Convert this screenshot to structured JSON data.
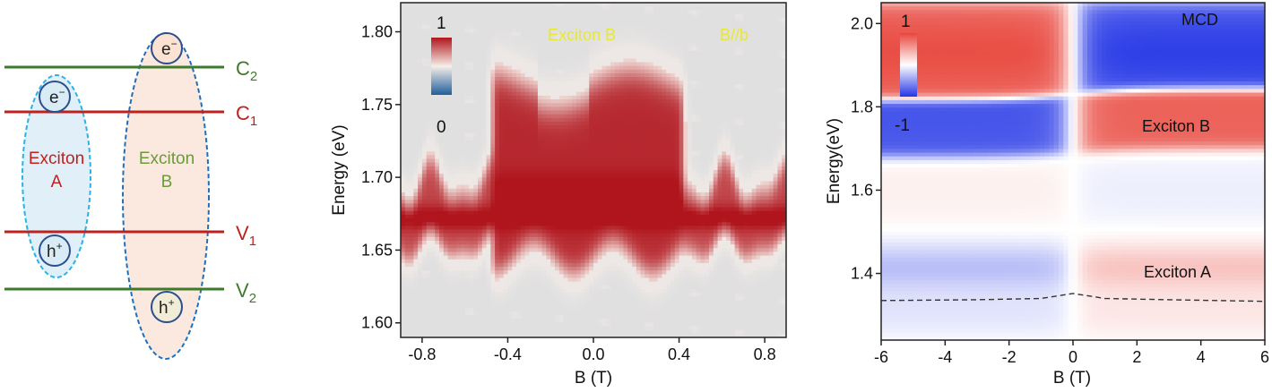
{
  "schematic": {
    "levels": [
      {
        "main": "C",
        "sub": "2",
        "color": "#3d7a2a"
      },
      {
        "main": "C",
        "sub": "1",
        "color": "#c0201e"
      },
      {
        "main": "V",
        "sub": "1",
        "color": "#c0201e"
      },
      {
        "main": "V",
        "sub": "2",
        "color": "#3d7a2a"
      }
    ],
    "exciton_a": {
      "line1": "Exciton",
      "line2": "A",
      "color": "#c0201e"
    },
    "exciton_b": {
      "line1": "Exciton",
      "line2": "B",
      "color": "#6b9a3a"
    },
    "electron": {
      "main": "e",
      "sup": "−"
    },
    "hole": {
      "main": "h",
      "sup": "+"
    }
  },
  "chart_data": [
    {
      "type": "heatmap",
      "xlabel": "B (T)",
      "ylabel": "Energy (eV)",
      "xlim": [
        -0.9,
        0.9
      ],
      "ylim": [
        1.59,
        1.82
      ],
      "xticks": [
        "-0.8",
        "-0.4",
        "0.0",
        "0.4",
        "0.8"
      ],
      "xtick_values": [
        -0.8,
        -0.4,
        0.0,
        0.4,
        0.8
      ],
      "yticks": [
        "1.60",
        "1.65",
        "1.70",
        "1.75",
        "1.80"
      ],
      "ytick_values": [
        1.6,
        1.65,
        1.7,
        1.75,
        1.8
      ],
      "colorbar": {
        "max_label": "1",
        "min_label": "0",
        "colors": [
          "#b0151d",
          "#f6eee8",
          "#1f5f9c"
        ]
      },
      "annotations": [
        "Exciton B",
        "B//b"
      ],
      "annotation_color": "#e8e830",
      "features": {
        "exciton_a_energy": 1.672,
        "low_field_band": [
          1.652,
          1.695
        ],
        "switch_fields": [
          -0.47,
          0.42
        ],
        "high_field_band": [
          1.645,
          1.765
        ]
      }
    },
    {
      "type": "heatmap",
      "xlabel": "B (T)",
      "ylabel": "Energy(eV)",
      "xlim": [
        -6,
        6
      ],
      "ylim": [
        1.24,
        2.05
      ],
      "xticks": [
        "-6",
        "-4",
        "-2",
        "0",
        "2",
        "4",
        "6"
      ],
      "xtick_values": [
        -6,
        -4,
        -2,
        0,
        2,
        4,
        6
      ],
      "yticks": [
        "1.4",
        "1.6",
        "1.8",
        "2.0"
      ],
      "ytick_values": [
        1.4,
        1.6,
        1.8,
        2.0
      ],
      "colorbar": {
        "max_label": "1",
        "min_label": "-1",
        "colors": [
          "#e8463c",
          "#ffffff",
          "#2436e6"
        ]
      },
      "annotations": [
        "MCD",
        "Exciton B",
        "Exciton A"
      ],
      "features": {
        "exciton_b_band": [
          1.83,
          2.04
        ],
        "lower_band": [
          1.68,
          1.82
        ],
        "exciton_a_band": [
          1.36,
          1.47
        ],
        "dashed_line": {
          "x": [
            -6,
            -3,
            -1,
            0,
            1,
            3,
            6
          ],
          "y": [
            1.335,
            1.337,
            1.34,
            1.352,
            1.34,
            1.337,
            1.333
          ]
        }
      }
    }
  ]
}
